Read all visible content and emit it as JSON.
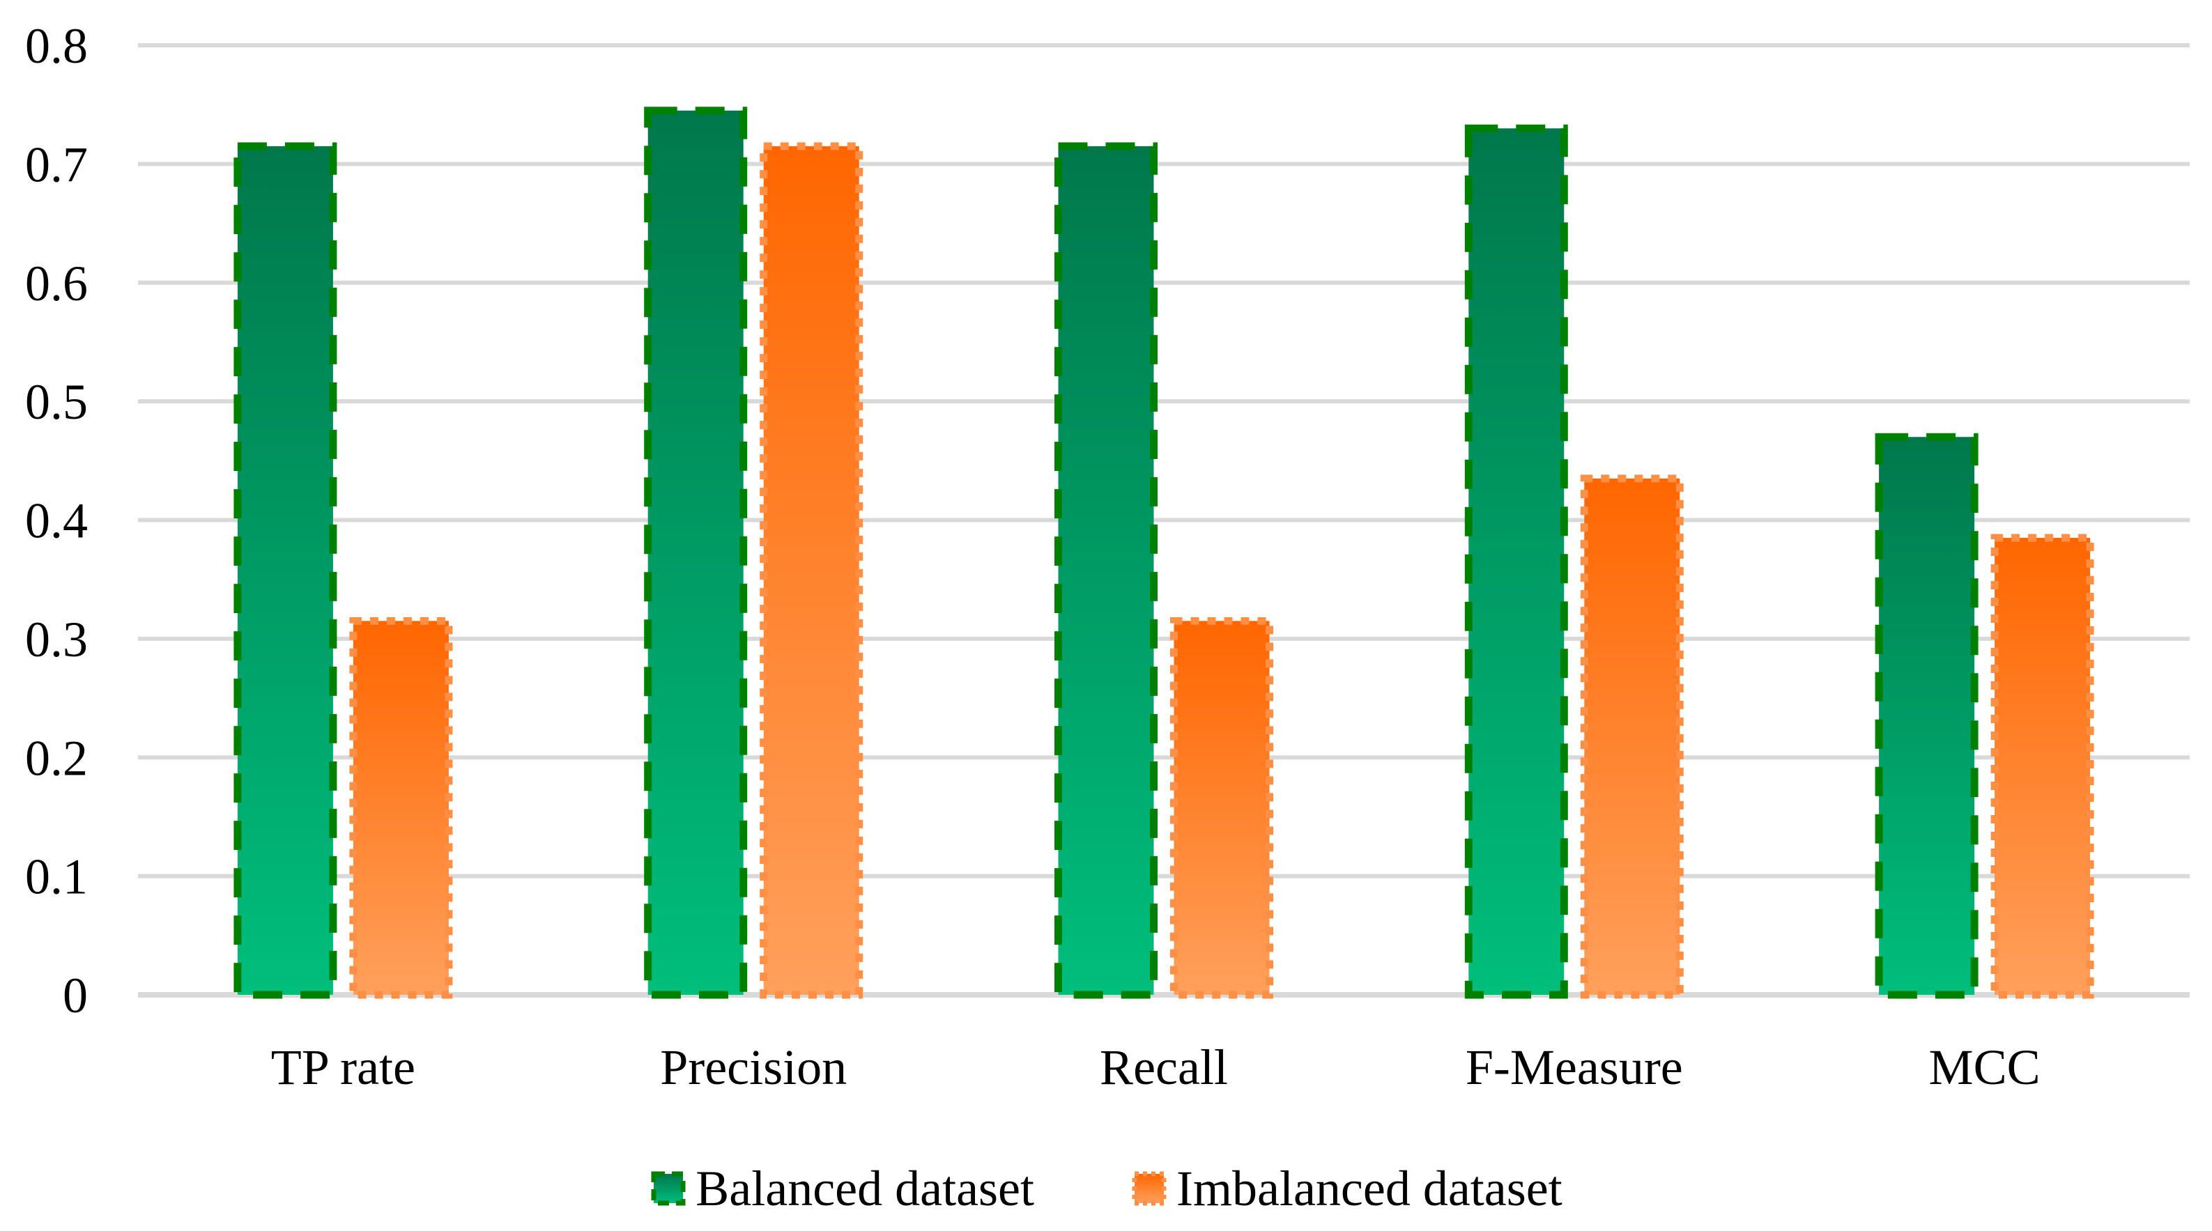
{
  "chart_data": {
    "type": "bar",
    "title": "",
    "xlabel": "",
    "ylabel": "",
    "categories": [
      "TP rate",
      "Precision",
      "Recall",
      "F-Measure",
      "MCC"
    ],
    "series": [
      {
        "name": "Balanced dataset",
        "values": [
          0.715,
          0.745,
          0.715,
          0.73,
          0.47
        ],
        "fill_top": "#00784C",
        "fill_bottom": "#00BE7C",
        "border_color": "#008000",
        "border_style": "dashed"
      },
      {
        "name": "Imbalanced dataset",
        "values": [
          0.315,
          0.715,
          0.315,
          0.435,
          0.385
        ],
        "fill_top": "#FF6600",
        "fill_bottom": "#FFA05C",
        "border_color": "#FF8F45",
        "border_style": "dotted"
      }
    ],
    "ylim": [
      0,
      0.8
    ],
    "yticks": [
      "0",
      "0.1",
      "0.2",
      "0.3",
      "0.4",
      "0.5",
      "0.6",
      "0.7",
      "0.8"
    ],
    "grid": true,
    "gridline_color": "#D9D9D9",
    "axis_text_color": "#000000",
    "legend_position": "bottom"
  }
}
